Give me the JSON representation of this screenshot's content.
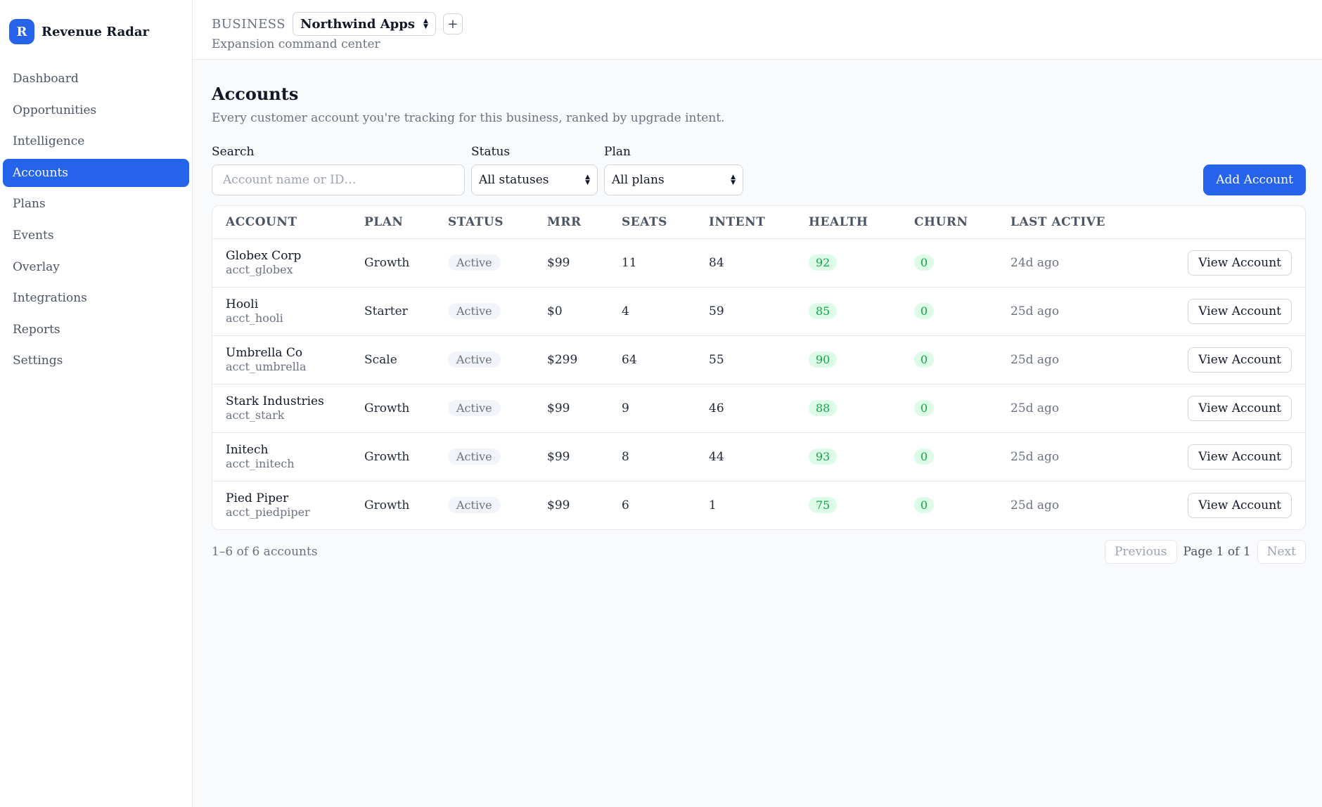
{
  "brand": {
    "logo_letter": "R",
    "name": "Revenue Radar"
  },
  "sidebar": {
    "items": [
      {
        "label": "Dashboard",
        "active": false
      },
      {
        "label": "Opportunities",
        "active": false
      },
      {
        "label": "Intelligence",
        "active": false
      },
      {
        "label": "Accounts",
        "active": true
      },
      {
        "label": "Plans",
        "active": false
      },
      {
        "label": "Events",
        "active": false
      },
      {
        "label": "Overlay",
        "active": false
      },
      {
        "label": "Integrations",
        "active": false
      },
      {
        "label": "Reports",
        "active": false
      },
      {
        "label": "Settings",
        "active": false
      }
    ]
  },
  "topbar": {
    "business_label": "BUSINESS",
    "business_selected": "Northwind Apps",
    "add_icon": "+",
    "subtitle": "Expansion command center"
  },
  "page": {
    "title": "Accounts",
    "subtitle": "Every customer account you're tracking for this business, ranked by upgrade intent."
  },
  "filters": {
    "search_label": "Search",
    "search_placeholder": "Account name or ID…",
    "search_value": "",
    "status_label": "Status",
    "status_value": "All statuses",
    "plan_label": "Plan",
    "plan_value": "All plans",
    "add_button": "Add Account"
  },
  "table": {
    "columns": [
      "ACCOUNT",
      "PLAN",
      "STATUS",
      "MRR",
      "SEATS",
      "INTENT",
      "HEALTH",
      "CHURN",
      "LAST ACTIVE"
    ],
    "rows": [
      {
        "name": "Globex Corp",
        "id": "acct_globex",
        "plan": "Growth",
        "status": "Active",
        "mrr": "$99",
        "seats": "11",
        "intent": "84",
        "health": "92",
        "churn": "0",
        "last_active": "24d ago",
        "action": "View Account"
      },
      {
        "name": "Hooli",
        "id": "acct_hooli",
        "plan": "Starter",
        "status": "Active",
        "mrr": "$0",
        "seats": "4",
        "intent": "59",
        "health": "85",
        "churn": "0",
        "last_active": "25d ago",
        "action": "View Account"
      },
      {
        "name": "Umbrella Co",
        "id": "acct_umbrella",
        "plan": "Scale",
        "status": "Active",
        "mrr": "$299",
        "seats": "64",
        "intent": "55",
        "health": "90",
        "churn": "0",
        "last_active": "25d ago",
        "action": "View Account"
      },
      {
        "name": "Stark Industries",
        "id": "acct_stark",
        "plan": "Growth",
        "status": "Active",
        "mrr": "$99",
        "seats": "9",
        "intent": "46",
        "health": "88",
        "churn": "0",
        "last_active": "25d ago",
        "action": "View Account"
      },
      {
        "name": "Initech",
        "id": "acct_initech",
        "plan": "Growth",
        "status": "Active",
        "mrr": "$99",
        "seats": "8",
        "intent": "44",
        "health": "93",
        "churn": "0",
        "last_active": "25d ago",
        "action": "View Account"
      },
      {
        "name": "Pied Piper",
        "id": "acct_piedpiper",
        "plan": "Growth",
        "status": "Active",
        "mrr": "$99",
        "seats": "6",
        "intent": "1",
        "health": "75",
        "churn": "0",
        "last_active": "25d ago",
        "action": "View Account"
      }
    ]
  },
  "pager": {
    "count": "1–6 of 6 accounts",
    "previous": "Previous",
    "info": "Page 1 of 1",
    "next": "Next"
  },
  "colors": {
    "accent": "#2563eb",
    "health_green": "#16a34a",
    "health_bg": "#dcfce7"
  },
  "icons": {
    "select_chevron": "chevron-up-down-icon",
    "add": "plus-icon"
  }
}
